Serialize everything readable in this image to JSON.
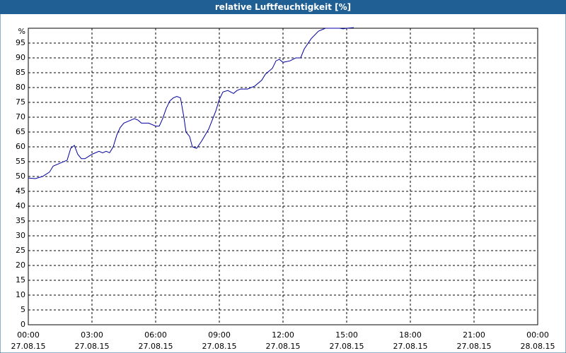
{
  "chart_data": {
    "type": "line",
    "title": "relative Luftfeuchtigkeit [%]",
    "x": [
      0,
      0.33,
      0.67,
      1,
      1.17,
      1.5,
      1.83,
      2,
      2.17,
      2.33,
      2.5,
      2.67,
      3,
      3.33,
      3.5,
      3.67,
      3.83,
      4,
      4.17,
      4.33,
      4.5,
      4.83,
      5,
      5.17,
      5.33,
      5.67,
      6,
      6.17,
      6.33,
      6.5,
      6.67,
      6.83,
      7,
      7.17,
      7.33,
      7.43,
      7.6,
      7.73,
      7.93,
      8.17,
      8.5,
      8.83,
      9,
      9.17,
      9.4,
      9.67,
      9.83,
      10,
      10.33,
      10.67,
      11,
      11.17,
      11.5,
      11.67,
      11.83,
      12,
      12.33,
      12.6,
      12.83,
      13,
      13.33,
      13.67,
      14,
      14.33,
      14.67,
      14.83,
      15,
      15.33
    ],
    "series": [
      {
        "name": "relative Luftfeuchtigkeit",
        "color": "#0000a0",
        "values": [
          49.5,
          49.3,
          50,
          51.5,
          53.5,
          54.5,
          55.5,
          59.5,
          60.5,
          57.5,
          56,
          56,
          57.5,
          58.5,
          58,
          58.5,
          58,
          60,
          64,
          66.5,
          68,
          69,
          69.5,
          69,
          68,
          68,
          67,
          67,
          69.5,
          73,
          75.5,
          76.5,
          77,
          76.5,
          70,
          65,
          63.5,
          60,
          59.5,
          62,
          66,
          72,
          76,
          78.5,
          79,
          78,
          79,
          79.5,
          79.5,
          80.5,
          82.5,
          84.5,
          86.5,
          89,
          89.5,
          88.5,
          89,
          90,
          90,
          93,
          96.5,
          99,
          100,
          100,
          100,
          99.8,
          100,
          100.2
        ]
      }
    ],
    "xlim": [
      0,
      24
    ],
    "xticks": [
      {
        "value": 0,
        "label": "00:00"
      },
      {
        "value": 3,
        "label": "03:00"
      },
      {
        "value": 6,
        "label": "06:00"
      },
      {
        "value": 9,
        "label": "09:00"
      },
      {
        "value": 12,
        "label": "12:00"
      },
      {
        "value": 15,
        "label": "15:00"
      },
      {
        "value": 18,
        "label": "18:00"
      },
      {
        "value": 21,
        "label": "21:00"
      },
      {
        "value": 24,
        "label": "00:00"
      }
    ],
    "xtick_dates": [
      "27.08.15",
      "27.08.15",
      "27.08.15",
      "27.08.15",
      "27.08.15",
      "27.08.15",
      "27.08.15",
      "27.08.15",
      "28.08.15"
    ],
    "ylim": [
      0,
      100
    ],
    "yticks": [
      0,
      5,
      10,
      15,
      20,
      25,
      30,
      35,
      40,
      45,
      50,
      55,
      60,
      65,
      70,
      75,
      80,
      85,
      90,
      95,
      {
        "value": 100,
        "label": "%"
      }
    ],
    "grid": true
  }
}
